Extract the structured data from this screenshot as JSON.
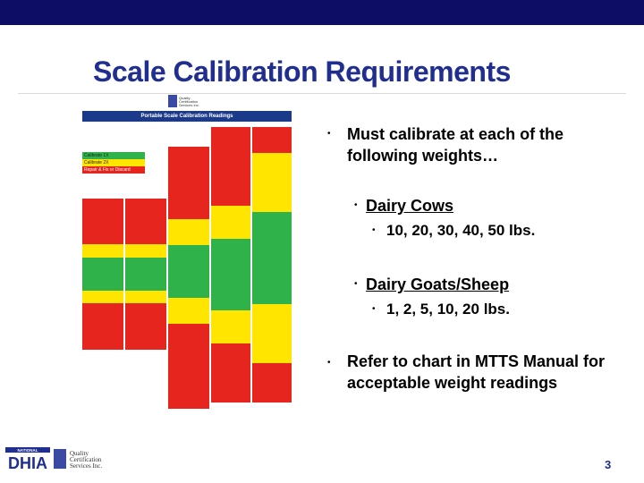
{
  "slide": {
    "title": "Scale Calibration Requirements",
    "page_number": "3",
    "colors": {
      "top_bar": "#0d0d66",
      "title": "#1f2e8f"
    }
  },
  "chart": {
    "header": "Portable Scale Calibration Readings",
    "logo_lines": [
      "Quality",
      "Certification",
      "Services Inc."
    ],
    "legend": [
      "Calibrate 1X",
      "Calibrate 2X",
      "Repair & Fix or Discard"
    ]
  },
  "bullets": {
    "main1": "Must calibrate at each of the following weights…",
    "sub1": "Dairy Cows",
    "sub1_detail": "10, 20, 30, 40, 50 lbs.",
    "sub2": "Dairy Goats/Sheep",
    "sub2_detail": "1, 2, 5, 10, 20 lbs.",
    "main2": "Refer to chart in MTTS Manual for acceptable weight readings"
  },
  "footer": {
    "logo1": "DHIA",
    "logo1_top": "NATIONAL",
    "logo2_lines": [
      "Quality",
      "Certification",
      "Services Inc."
    ]
  }
}
